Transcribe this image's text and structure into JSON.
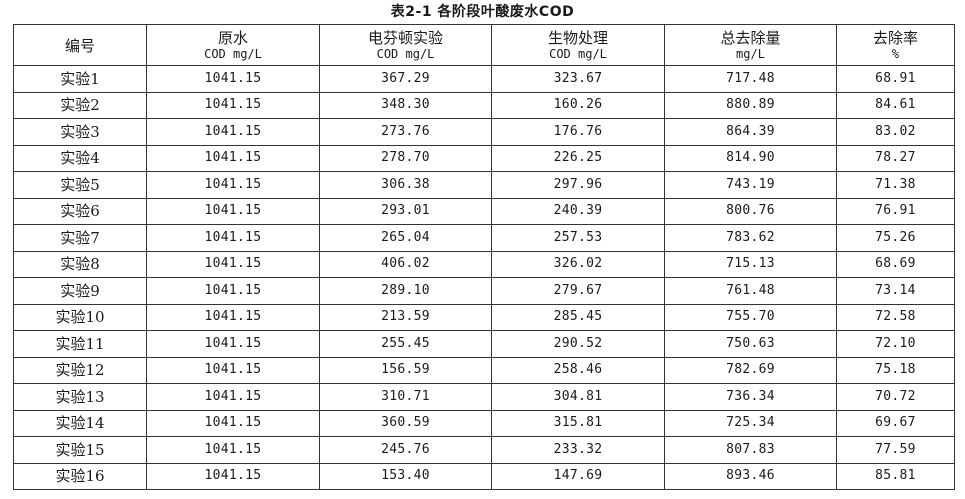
{
  "table": {
    "caption": "表2-1  各阶段叶酸废水COD",
    "columns": [
      {
        "label": "编号",
        "unit": ""
      },
      {
        "label": "原水",
        "unit": "COD mg/L"
      },
      {
        "label": "电芬顿实验",
        "unit": "COD mg/L"
      },
      {
        "label": "生物处理",
        "unit": "COD mg/L"
      },
      {
        "label": "总去除量",
        "unit": "mg/L"
      },
      {
        "label": "去除率",
        "unit": "%"
      }
    ],
    "rows": [
      [
        "实验1",
        "1041.15",
        "367.29",
        "323.67",
        "717.48",
        "68.91"
      ],
      [
        "实验2",
        "1041.15",
        "348.30",
        "160.26",
        "880.89",
        "84.61"
      ],
      [
        "实验3",
        "1041.15",
        "273.76",
        "176.76",
        "864.39",
        "83.02"
      ],
      [
        "实验4",
        "1041.15",
        "278.70",
        "226.25",
        "814.90",
        "78.27"
      ],
      [
        "实验5",
        "1041.15",
        "306.38",
        "297.96",
        "743.19",
        "71.38"
      ],
      [
        "实验6",
        "1041.15",
        "293.01",
        "240.39",
        "800.76",
        "76.91"
      ],
      [
        "实验7",
        "1041.15",
        "265.04",
        "257.53",
        "783.62",
        "75.26"
      ],
      [
        "实验8",
        "1041.15",
        "406.02",
        "326.02",
        "715.13",
        "68.69"
      ],
      [
        "实验9",
        "1041.15",
        "289.10",
        "279.67",
        "761.48",
        "73.14"
      ],
      [
        "实验10",
        "1041.15",
        "213.59",
        "285.45",
        "755.70",
        "72.58"
      ],
      [
        "实验11",
        "1041.15",
        "255.45",
        "290.52",
        "750.63",
        "72.10"
      ],
      [
        "实验12",
        "1041.15",
        "156.59",
        "258.46",
        "782.69",
        "75.18"
      ],
      [
        "实验13",
        "1041.15",
        "310.71",
        "304.81",
        "736.34",
        "70.72"
      ],
      [
        "实验14",
        "1041.15",
        "360.59",
        "315.81",
        "725.34",
        "69.67"
      ],
      [
        "实验15",
        "1041.15",
        "245.76",
        "233.32",
        "807.83",
        "77.59"
      ],
      [
        "实验16",
        "1041.15",
        "153.40",
        "147.69",
        "893.46",
        "85.81"
      ]
    ]
  }
}
